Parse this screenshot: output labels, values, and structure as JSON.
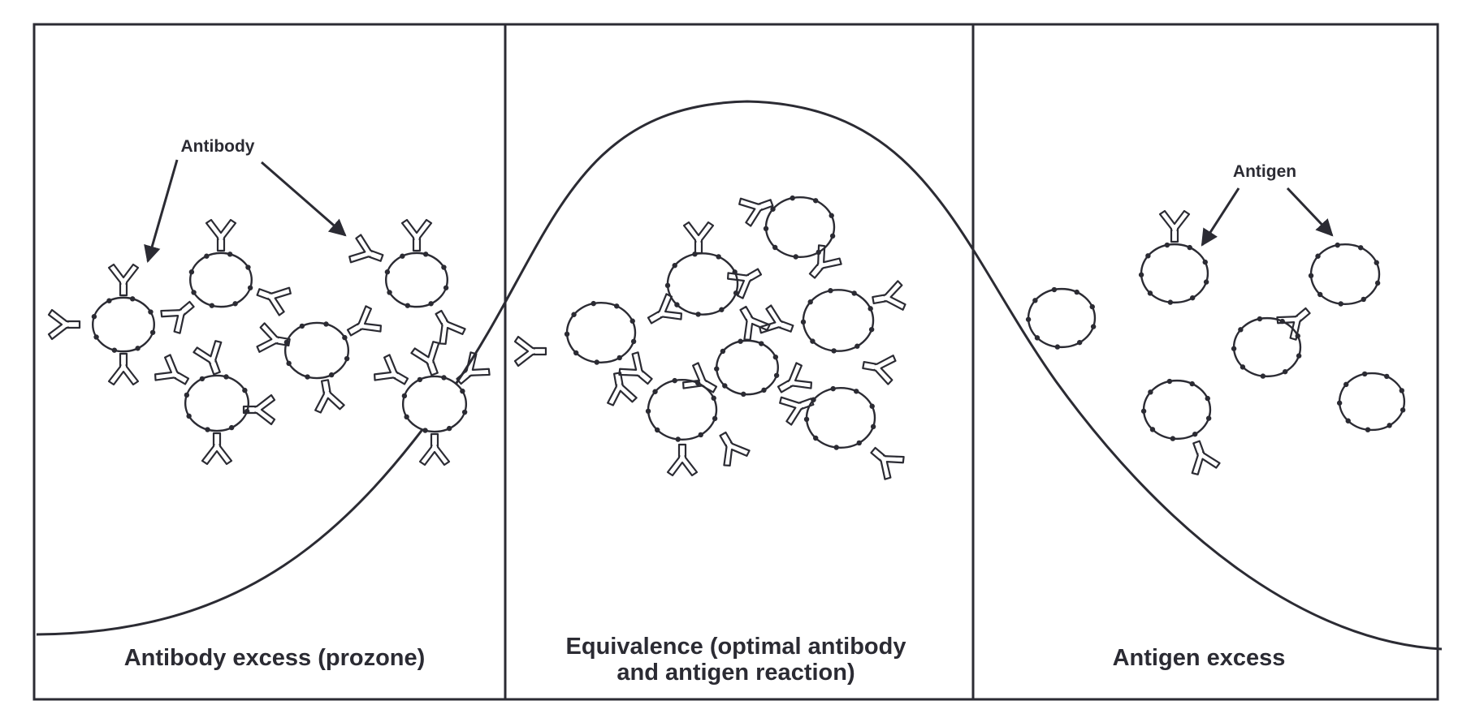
{
  "panels": [
    {
      "id": "left",
      "caption_lines": [
        "Antibody excess (prozone)"
      ]
    },
    {
      "id": "middle",
      "caption_lines": [
        "Equivalence (optimal antibody",
        "and antigen reaction)"
      ]
    },
    {
      "id": "right",
      "caption_lines": [
        "Antigen excess"
      ]
    }
  ],
  "callouts": {
    "antibody": "Antibody",
    "antigen": "Antigen"
  },
  "colors": {
    "line": "#2b2b33",
    "background": "#ffffff"
  }
}
